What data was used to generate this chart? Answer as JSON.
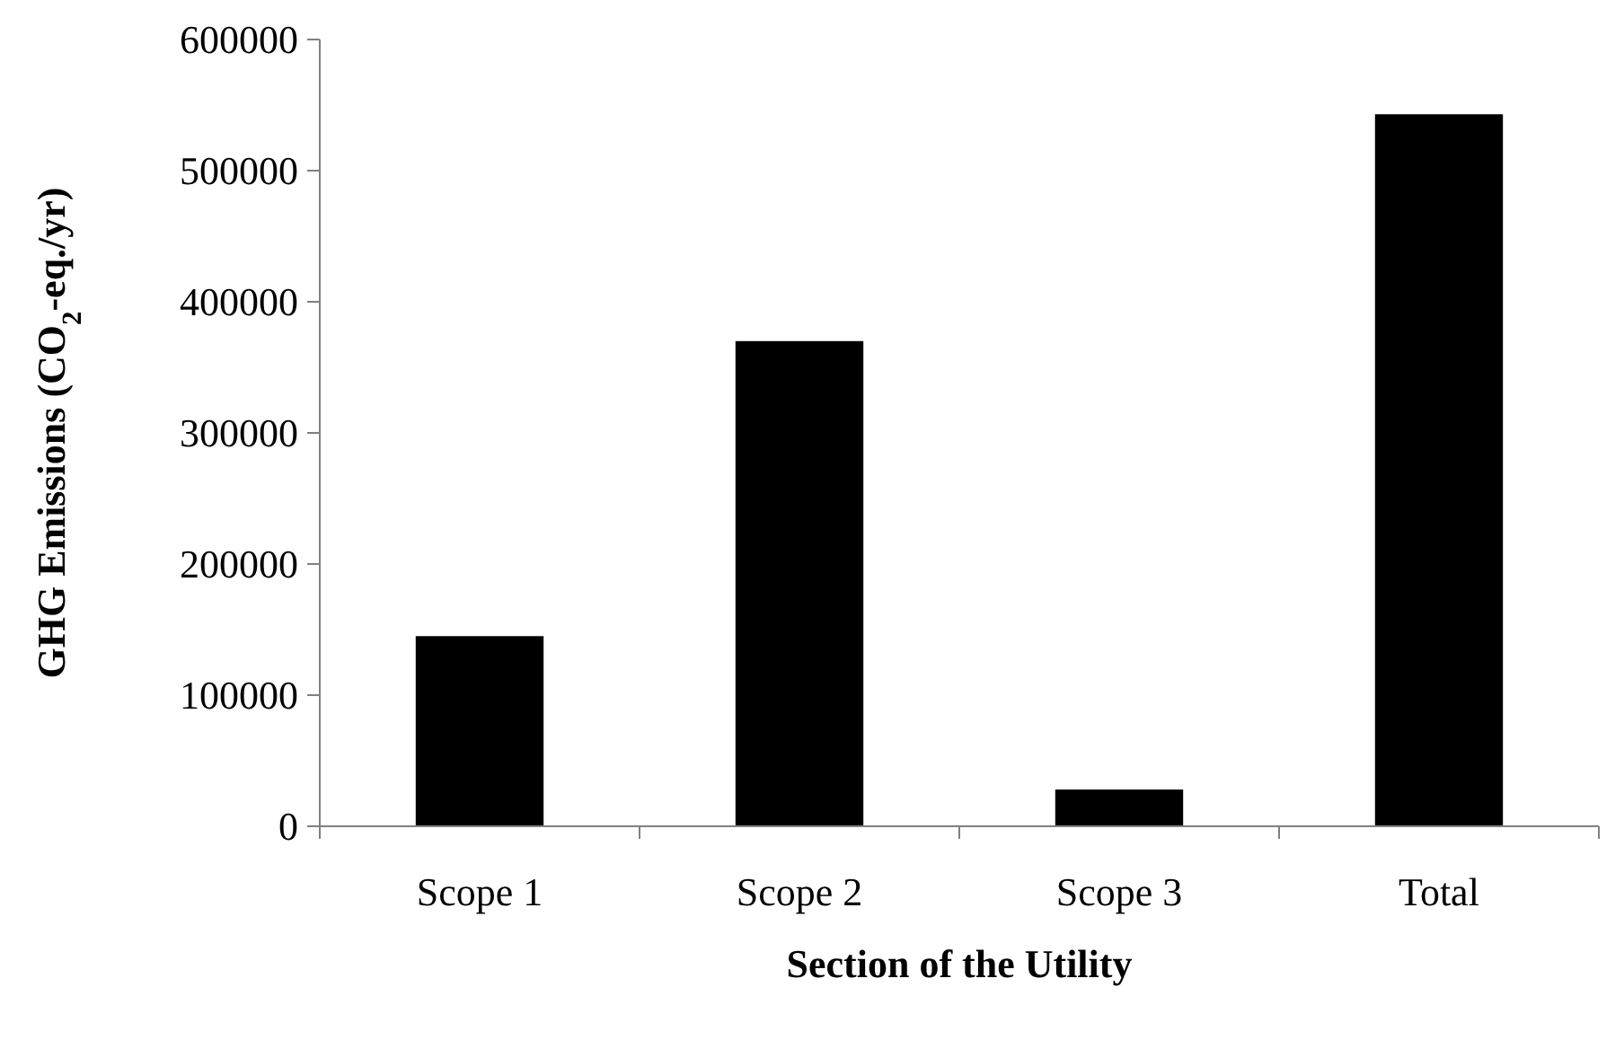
{
  "chart_data": {
    "type": "bar",
    "categories": [
      "Scope 1",
      "Scope 2",
      "Scope 3",
      "Total"
    ],
    "values": [
      145000,
      370000,
      28000,
      543000
    ],
    "color": "#000000",
    "ylim": [
      0,
      600000
    ],
    "yticks": [
      0,
      100000,
      200000,
      300000,
      400000,
      500000,
      600000
    ],
    "xlabel": "Section of the Utility",
    "ylabel": "GHG Emissions (CO$_{2}$-eq./yr)",
    "grid": false
  }
}
